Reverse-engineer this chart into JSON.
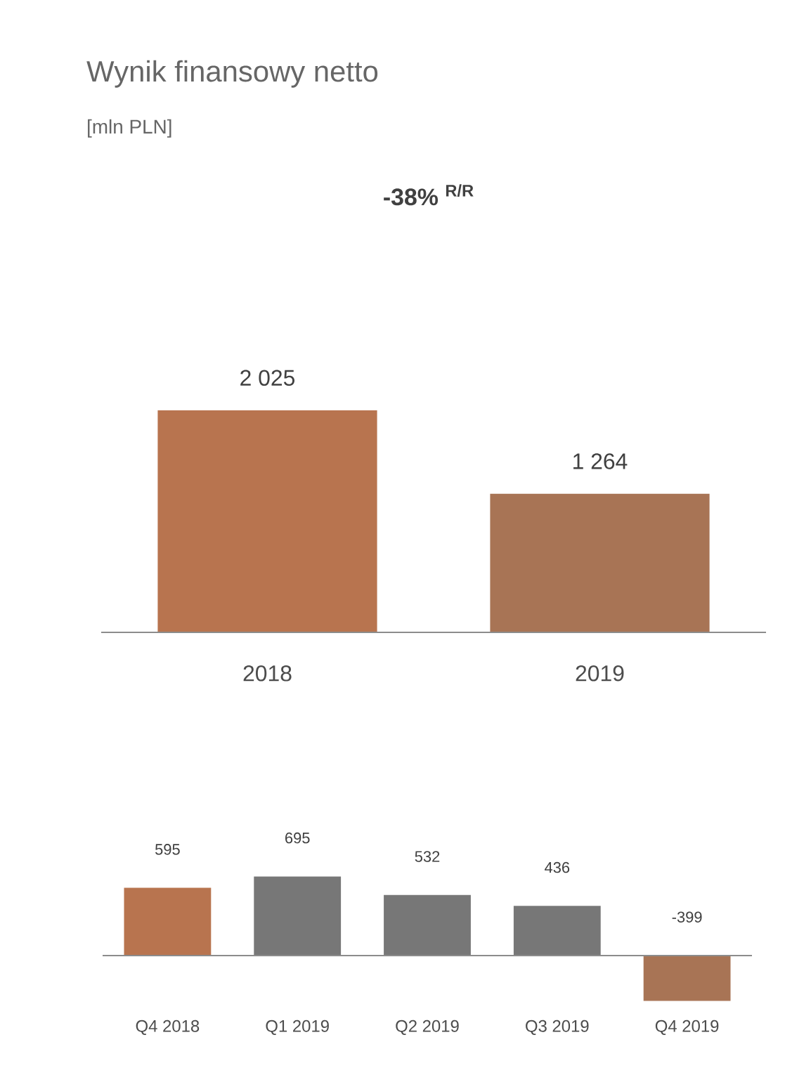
{
  "chart_data": [
    {
      "type": "bar",
      "title": "Wynik finansowy netto",
      "subtitle": "[mln PLN]",
      "annotations": [
        "-38% $^{R/R}$"
      ],
      "categories": [
        "2018",
        "2019"
      ],
      "values": [
        2025,
        1264
      ],
      "value_labels": [
        "2 025",
        "1 264"
      ],
      "colors": [
        "#b8744f",
        "#a87455"
      ]
    },
    {
      "type": "bar",
      "categories": [
        "Q4 2018",
        "Q1 2019",
        "Q2 2019",
        "Q3 2019",
        "Q4 2019"
      ],
      "values": [
        595,
        695,
        532,
        436,
        -399
      ],
      "data_labels": true,
      "colors": [
        "#b8744f",
        "#777777",
        "#777777",
        "#777777",
        "#a87455"
      ]
    }
  ]
}
